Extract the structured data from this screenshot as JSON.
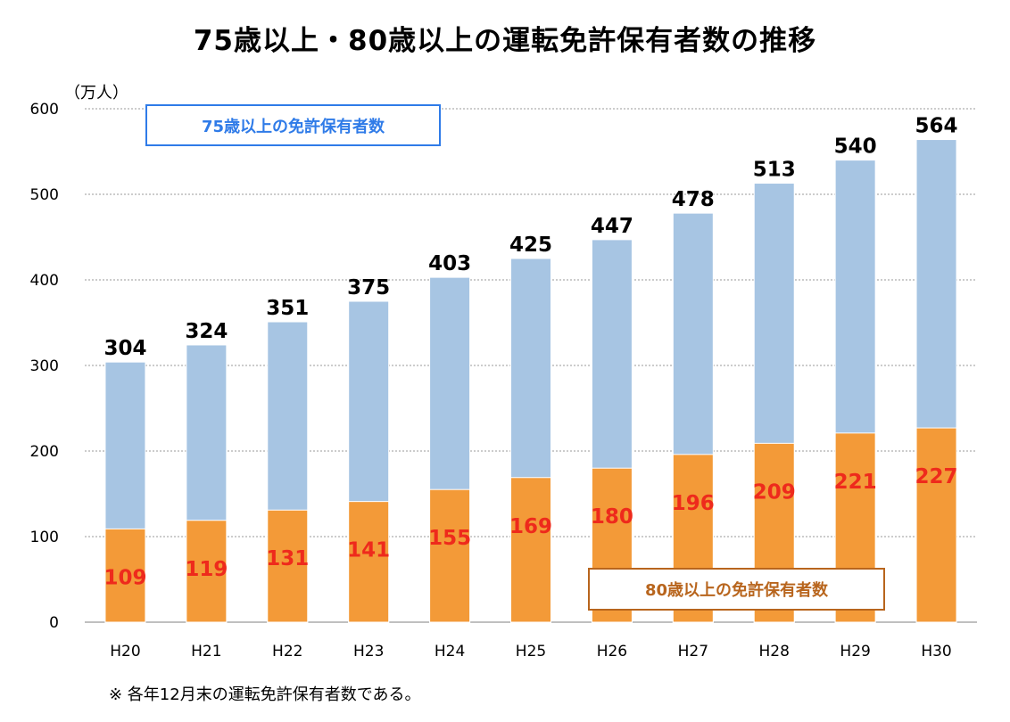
{
  "title": "75歳以上・80歳以上の運転免許保有者数の推移",
  "unit_label": "（万人）",
  "footnote": "※ 各年12月末の運転免許保有者数である。",
  "colors": {
    "total_bar": "#a7c5e3",
    "over80_bar": "#f39a38",
    "over80_label": "#ee2a1c",
    "total_label": "#000000",
    "legend_75_border": "#2f7be8",
    "legend_80_border": "#b8651d",
    "grid": "#999999"
  },
  "chart_data": {
    "type": "bar",
    "stacked_overlay": true,
    "categories": [
      "H20",
      "H21",
      "H22",
      "H23",
      "H24",
      "H25",
      "H26",
      "H27",
      "H28",
      "H29",
      "H30"
    ],
    "series": [
      {
        "name": "75歳以上の免許保有者数",
        "values": [
          304,
          324,
          351,
          375,
          403,
          425,
          447,
          478,
          513,
          540,
          564
        ]
      },
      {
        "name": "80歳以上の免許保有者数",
        "values": [
          109,
          119,
          131,
          141,
          155,
          169,
          180,
          196,
          209,
          221,
          227
        ]
      }
    ],
    "ylim": [
      0,
      600
    ],
    "yticks": [
      0,
      100,
      200,
      300,
      400,
      500,
      600
    ],
    "grid": true,
    "ylabel": "（万人）",
    "xlabel": ""
  }
}
